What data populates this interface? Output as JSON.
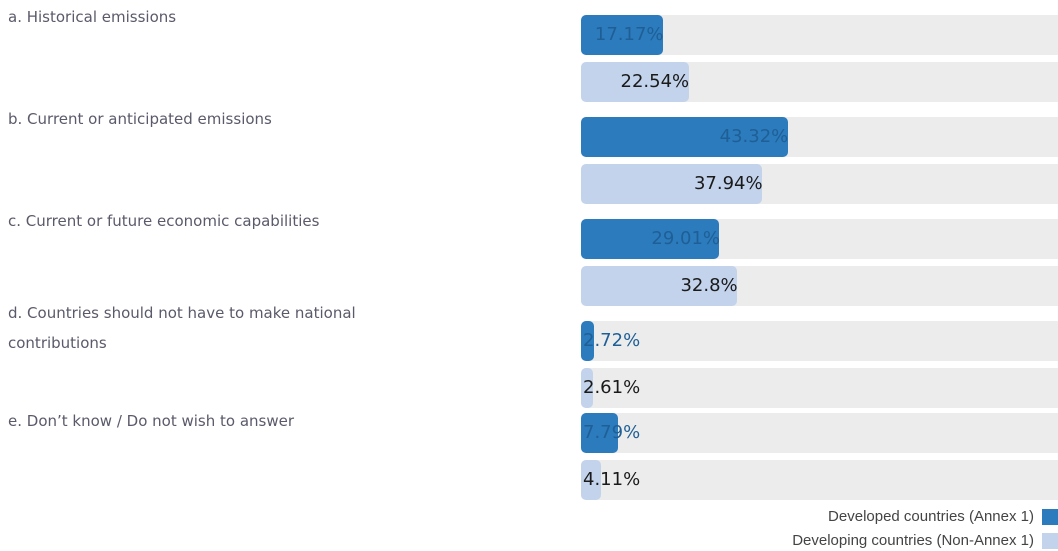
{
  "chart_data": {
    "type": "bar",
    "orientation": "horizontal",
    "categories": [
      "a. Historical emissions",
      "b. Current or anticipated emissions",
      "c. Current or future economic capabilities",
      "d. Countries should not have to make national contributions",
      "e. Don’t know / Do not wish to answer"
    ],
    "series": [
      {
        "name": "Developed countries (Annex 1)",
        "color": "#2b7bbd",
        "values": [
          17.17,
          43.32,
          29.01,
          2.72,
          7.79
        ],
        "labels": [
          "17.17%",
          "43.32%",
          "29.01%",
          "2.72%",
          "7.79%"
        ]
      },
      {
        "name": "Developing countries (Non-Annex 1)",
        "color": "#c3d3ec",
        "values": [
          22.54,
          37.94,
          32.8,
          2.61,
          4.11
        ],
        "labels": [
          "22.54%",
          "37.94%",
          "32.8%",
          "2.61%",
          "4.11%"
        ]
      }
    ],
    "xlim": [
      0,
      100
    ],
    "legend_position": "bottom-right",
    "grid": false
  }
}
